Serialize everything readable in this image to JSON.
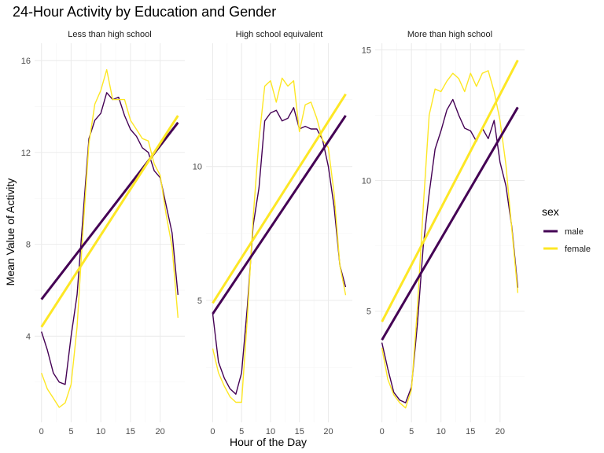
{
  "chart_data": {
    "type": "line",
    "title": "24-Hour Activity by Education and Gender",
    "xlabel": "Hour of the Day",
    "ylabel": "Mean Value of Activity",
    "legend": {
      "title": "sex",
      "position": "right",
      "entries": [
        {
          "name": "male",
          "color": "#440154"
        },
        {
          "name": "female",
          "color": "#FDE725"
        }
      ]
    },
    "x_ticks": [
      0,
      5,
      10,
      15,
      20
    ],
    "xlim": [
      -1.15,
      24.15
    ],
    "panels": [
      {
        "strip": "Less than high school",
        "ylim": [
          0.25,
          16.75
        ],
        "y_ticks": [
          4,
          8,
          12,
          16
        ],
        "series": [
          {
            "name": "male",
            "x": [
              0,
              1,
              2,
              3,
              4,
              5,
              6,
              7,
              8,
              9,
              10,
              11,
              12,
              13,
              14,
              15,
              16,
              17,
              18,
              19,
              20,
              21,
              22,
              23
            ],
            "values": [
              4.2,
              3.4,
              2.4,
              2.0,
              1.9,
              4.0,
              5.8,
              9.2,
              12.6,
              13.4,
              13.7,
              14.6,
              14.3,
              14.4,
              13.6,
              13.0,
              12.7,
              12.2,
              12.0,
              11.2,
              10.9,
              9.7,
              8.5,
              5.8
            ],
            "trend": [
              5.6,
              13.3
            ]
          },
          {
            "name": "female",
            "x": [
              0,
              1,
              2,
              3,
              4,
              5,
              6,
              7,
              8,
              9,
              10,
              11,
              12,
              13,
              14,
              15,
              16,
              17,
              18,
              19,
              20,
              21,
              22,
              23
            ],
            "values": [
              2.4,
              1.7,
              1.3,
              0.9,
              1.1,
              1.9,
              4.4,
              8.6,
              12.4,
              14.1,
              14.7,
              15.6,
              14.3,
              14.3,
              14.3,
              13.4,
              13.0,
              12.6,
              12.5,
              11.5,
              11.0,
              9.3,
              7.9,
              4.8
            ],
            "trend": [
              4.4,
              13.6
            ]
          }
        ]
      },
      {
        "strip": "High school equivalent",
        "ylim": [
          0.45,
          14.6
        ],
        "y_ticks": [
          5,
          10
        ],
        "series": [
          {
            "name": "male",
            "x": [
              0,
              1,
              2,
              3,
              4,
              5,
              6,
              7,
              8,
              9,
              10,
              11,
              12,
              13,
              14,
              15,
              16,
              17,
              18,
              19,
              20,
              21,
              22,
              23
            ],
            "values": [
              4.5,
              2.7,
              2.1,
              1.7,
              1.5,
              2.3,
              4.8,
              7.8,
              9.2,
              11.7,
              12.0,
              12.1,
              11.7,
              11.8,
              12.2,
              11.4,
              11.5,
              11.4,
              11.4,
              11.0,
              10.0,
              8.5,
              6.3,
              5.5
            ],
            "trend": [
              4.5,
              11.9
            ]
          },
          {
            "name": "female",
            "x": [
              0,
              1,
              2,
              3,
              4,
              5,
              6,
              7,
              8,
              9,
              10,
              11,
              12,
              13,
              14,
              15,
              16,
              17,
              18,
              19,
              20,
              21,
              22,
              23
            ],
            "values": [
              3.2,
              2.3,
              1.8,
              1.4,
              1.2,
              1.2,
              4.4,
              8.1,
              11.0,
              13.0,
              13.2,
              12.4,
              13.3,
              13.0,
              13.2,
              11.3,
              12.3,
              12.4,
              11.8,
              11.0,
              10.7,
              9.0,
              6.3,
              5.2
            ],
            "trend": [
              4.9,
              12.7
            ]
          }
        ]
      },
      {
        "strip": "More than high school",
        "ylim": [
          0.75,
          15.25
        ],
        "y_ticks": [
          5,
          10,
          15
        ],
        "series": [
          {
            "name": "male",
            "x": [
              0,
              1,
              2,
              3,
              4,
              5,
              6,
              7,
              8,
              9,
              10,
              11,
              12,
              13,
              14,
              15,
              16,
              17,
              18,
              19,
              20,
              21,
              22,
              23
            ],
            "values": [
              3.8,
              2.8,
              1.9,
              1.6,
              1.5,
              2.1,
              4.5,
              7.5,
              9.5,
              11.2,
              11.9,
              12.7,
              13.1,
              12.5,
              12.0,
              11.9,
              11.5,
              12.0,
              11.6,
              12.3,
              10.7,
              9.8,
              8.2,
              5.9
            ],
            "trend": [
              3.9,
              12.8
            ]
          },
          {
            "name": "female",
            "x": [
              0,
              1,
              2,
              3,
              4,
              5,
              6,
              7,
              8,
              9,
              10,
              11,
              12,
              13,
              14,
              15,
              16,
              17,
              18,
              19,
              20,
              21,
              22,
              23
            ],
            "values": [
              3.6,
              2.4,
              1.8,
              1.5,
              1.3,
              2.0,
              5.1,
              9.0,
              12.5,
              13.5,
              13.4,
              13.8,
              14.1,
              13.9,
              13.4,
              14.1,
              13.6,
              14.1,
              14.2,
              13.4,
              12.3,
              10.6,
              8.1,
              5.7
            ],
            "trend": [
              4.6,
              14.6
            ]
          }
        ]
      }
    ]
  }
}
